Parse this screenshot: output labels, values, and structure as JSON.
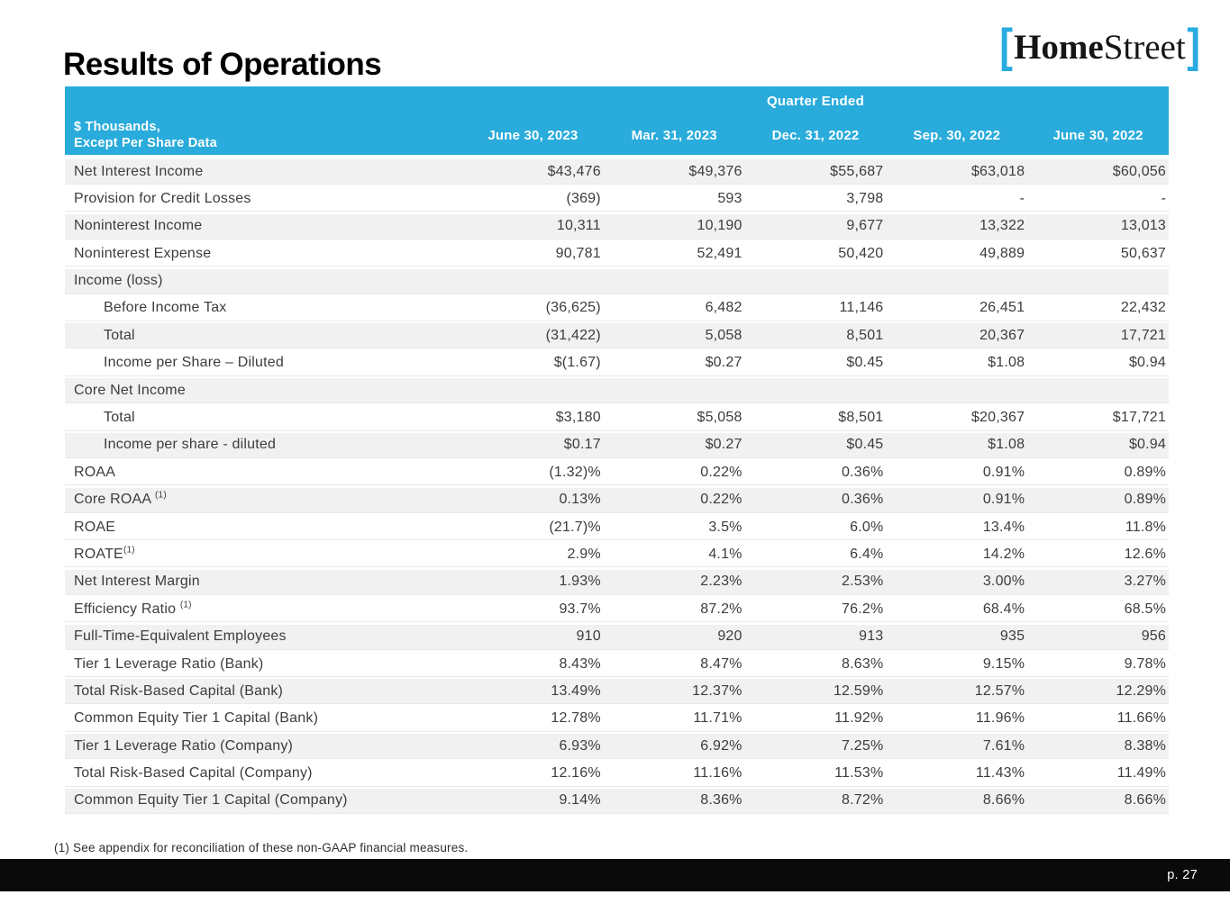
{
  "slide": {
    "title": "Results of Operations",
    "footnote": "(1) See appendix for reconciliation of these non-GAAP financial measures.",
    "page_number": "p. 27"
  },
  "logo": {
    "bracket_left": "[",
    "home": "Home",
    "street": "Street",
    "bracket_right": "]"
  },
  "colors": {
    "header_cyan": "#29ABDB",
    "logo_bracket_cyan": "#29ABE2",
    "row_shade_gray": "#F1F1F2",
    "footer_black": "#0A0A0A"
  },
  "table": {
    "group_header": "Quarter Ended",
    "corner_label_line1": "$ Thousands,",
    "corner_label_line2": "Except Per Share Data",
    "columns": [
      "June 30, 2023",
      "Mar. 31, 2023",
      "Dec. 31, 2022",
      "Sep. 30, 2022",
      "June 30, 2022"
    ],
    "rows": [
      {
        "label": "Net Interest Income",
        "sup": "",
        "indent": false,
        "section": false,
        "shaded": true,
        "values": [
          "$43,476",
          "$49,376",
          "$55,687",
          "$63,018",
          "$60,056"
        ]
      },
      {
        "label": "Provision for Credit Losses",
        "sup": "",
        "indent": false,
        "section": false,
        "shaded": false,
        "values": [
          "(369)",
          "593",
          "3,798",
          "-",
          "-"
        ]
      },
      {
        "label": "Noninterest Income",
        "sup": "",
        "indent": false,
        "section": false,
        "shaded": true,
        "values": [
          "10,311",
          "10,190",
          "9,677",
          "13,322",
          "13,013"
        ]
      },
      {
        "label": "Noninterest Expense",
        "sup": "",
        "indent": false,
        "section": false,
        "shaded": false,
        "values": [
          "90,781",
          "52,491",
          "50,420",
          "49,889",
          "50,637"
        ]
      },
      {
        "label": "Income (loss)",
        "sup": "",
        "indent": false,
        "section": true,
        "shaded": true,
        "values": [
          "",
          "",
          "",
          "",
          ""
        ]
      },
      {
        "label": "Before Income Tax",
        "sup": "",
        "indent": true,
        "section": false,
        "shaded": false,
        "values": [
          "(36,625)",
          "6,482",
          "11,146",
          "26,451",
          "22,432"
        ]
      },
      {
        "label": "Total",
        "sup": "",
        "indent": true,
        "section": false,
        "shaded": true,
        "values": [
          "(31,422)",
          "5,058",
          "8,501",
          "20,367",
          "17,721"
        ]
      },
      {
        "label": "Income per Share – Diluted",
        "sup": "",
        "indent": true,
        "section": false,
        "shaded": false,
        "values": [
          "$(1.67)",
          "$0.27",
          "$0.45",
          "$1.08",
          "$0.94"
        ]
      },
      {
        "label": "Core Net Income",
        "sup": "",
        "indent": false,
        "section": true,
        "shaded": true,
        "values": [
          "",
          "",
          "",
          "",
          ""
        ]
      },
      {
        "label": "Total",
        "sup": "",
        "indent": true,
        "section": false,
        "shaded": false,
        "values": [
          "$3,180",
          "$5,058",
          "$8,501",
          "$20,367",
          "$17,721"
        ]
      },
      {
        "label": "Income per share - diluted",
        "sup": "",
        "indent": true,
        "section": false,
        "shaded": true,
        "values": [
          "$0.17",
          "$0.27",
          "$0.45",
          "$1.08",
          "$0.94"
        ]
      },
      {
        "label": "ROAA",
        "sup": "",
        "indent": false,
        "section": false,
        "shaded": false,
        "values": [
          "(1.32)%",
          "0.22%",
          "0.36%",
          "0.91%",
          "0.89%"
        ]
      },
      {
        "label": "Core ROAA ",
        "sup": "(1)",
        "indent": false,
        "section": false,
        "shaded": true,
        "values": [
          "0.13%",
          "0.22%",
          "0.36%",
          "0.91%",
          "0.89%"
        ]
      },
      {
        "label": "ROAE",
        "sup": "",
        "indent": false,
        "section": false,
        "shaded": false,
        "values": [
          "(21.7)%",
          "3.5%",
          "6.0%",
          "13.4%",
          "11.8%"
        ]
      },
      {
        "label": "ROATE",
        "sup": "(1)",
        "indent": false,
        "section": false,
        "shaded": false,
        "values": [
          "2.9%",
          "4.1%",
          "6.4%",
          "14.2%",
          "12.6%"
        ]
      },
      {
        "label": "Net Interest Margin",
        "sup": "",
        "indent": false,
        "section": false,
        "shaded": true,
        "values": [
          "1.93%",
          "2.23%",
          "2.53%",
          "3.00%",
          "3.27%"
        ]
      },
      {
        "label": "Efficiency Ratio ",
        "sup": "(1)",
        "indent": false,
        "section": false,
        "shaded": false,
        "values": [
          "93.7%",
          "87.2%",
          "76.2%",
          "68.4%",
          "68.5%"
        ]
      },
      {
        "label": "Full-Time-Equivalent Employees",
        "sup": "",
        "indent": false,
        "section": false,
        "shaded": true,
        "values": [
          "910",
          "920",
          "913",
          "935",
          "956"
        ]
      },
      {
        "label": "Tier 1 Leverage Ratio (Bank)",
        "sup": "",
        "indent": false,
        "section": false,
        "shaded": false,
        "values": [
          "8.43%",
          "8.47%",
          "8.63%",
          "9.15%",
          "9.78%"
        ]
      },
      {
        "label": "Total Risk-Based Capital (Bank)",
        "sup": "",
        "indent": false,
        "section": false,
        "shaded": true,
        "values": [
          "13.49%",
          "12.37%",
          "12.59%",
          "12.57%",
          "12.29%"
        ]
      },
      {
        "label": "Common Equity Tier 1 Capital (Bank)",
        "sup": "",
        "indent": false,
        "section": false,
        "shaded": false,
        "values": [
          "12.78%",
          "11.71%",
          "11.92%",
          "11.96%",
          "11.66%"
        ]
      },
      {
        "label": "Tier 1 Leverage Ratio (Company)",
        "sup": "",
        "indent": false,
        "section": false,
        "shaded": true,
        "values": [
          "6.93%",
          "6.92%",
          "7.25%",
          "7.61%",
          "8.38%"
        ]
      },
      {
        "label": "Total Risk-Based Capital (Company)",
        "sup": "",
        "indent": false,
        "section": false,
        "shaded": false,
        "values": [
          "12.16%",
          "11.16%",
          "11.53%",
          "11.43%",
          "11.49%"
        ]
      },
      {
        "label": "Common Equity Tier 1 Capital (Company)",
        "sup": "",
        "indent": false,
        "section": false,
        "shaded": true,
        "values": [
          "9.14%",
          "8.36%",
          "8.72%",
          "8.66%",
          "8.66%"
        ]
      }
    ]
  }
}
